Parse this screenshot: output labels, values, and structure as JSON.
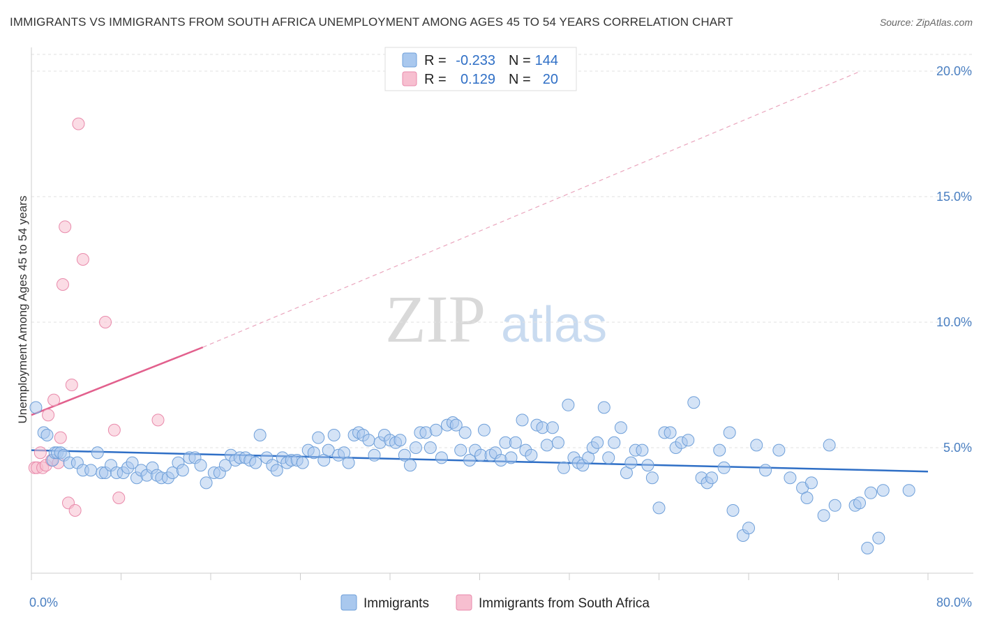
{
  "header": {
    "title": "IMMIGRANTS VS IMMIGRANTS FROM SOUTH AFRICA UNEMPLOYMENT AMONG AGES 45 TO 54 YEARS CORRELATION CHART",
    "source": "Source: ZipAtlas.com"
  },
  "watermark": {
    "zip": "ZIP",
    "atlas": "atlas"
  },
  "legend": {
    "rows": [
      {
        "r_label": "R =",
        "r_value": "-0.233",
        "n_label": "N =",
        "n_value": "144"
      },
      {
        "r_label": "R =",
        "r_value": "0.129",
        "n_label": "N =",
        "n_value": "20"
      }
    ]
  },
  "chart_data": {
    "type": "scatter",
    "ylabel": "Unemployment Among Ages 45 to 54 years",
    "xlabel": "",
    "xlim": [
      0,
      80
    ],
    "ylim": [
      0,
      20.5
    ],
    "x_tick_labels": [
      {
        "value": 0,
        "label": "0.0%"
      },
      {
        "value": 80,
        "label": "80.0%"
      }
    ],
    "y_tick_labels": [
      {
        "value": 5,
        "label": "5.0%"
      },
      {
        "value": 10,
        "label": "10.0%"
      },
      {
        "value": 15,
        "label": "15.0%"
      },
      {
        "value": 20,
        "label": "20.0%"
      }
    ],
    "grid": "horizontal dashed",
    "legend_position": "top-center",
    "colors": {
      "immigrants_fill": "#a9c8ee",
      "immigrants_stroke": "#6e9fd9",
      "immigrants_line": "#2f6fc6",
      "south_africa_fill": "#f7bfd0",
      "south_africa_stroke": "#e98aab",
      "south_africa_line": "#e2608d"
    },
    "series": [
      {
        "name": "Immigrants",
        "trend": {
          "x": [
            0,
            80
          ],
          "y": [
            4.9,
            4.05
          ],
          "style": "solid"
        },
        "points": [
          [
            0.4,
            6.6
          ],
          [
            1.1,
            5.6
          ],
          [
            1.4,
            5.5
          ],
          [
            1.9,
            4.5
          ],
          [
            2.1,
            4.8
          ],
          [
            2.3,
            4.8
          ],
          [
            2.6,
            4.8
          ],
          [
            2.9,
            4.7
          ],
          [
            3.4,
            4.4
          ],
          [
            4.1,
            4.4
          ],
          [
            4.6,
            4.1
          ],
          [
            5.3,
            4.1
          ],
          [
            5.9,
            4.8
          ],
          [
            6.3,
            4.0
          ],
          [
            6.6,
            4.0
          ],
          [
            7.1,
            4.3
          ],
          [
            7.6,
            4.0
          ],
          [
            8.2,
            4.0
          ],
          [
            8.6,
            4.2
          ],
          [
            9.0,
            4.4
          ],
          [
            9.4,
            3.8
          ],
          [
            9.8,
            4.1
          ],
          [
            10.3,
            3.9
          ],
          [
            10.8,
            4.2
          ],
          [
            11.2,
            3.9
          ],
          [
            11.6,
            3.8
          ],
          [
            12.2,
            3.8
          ],
          [
            12.6,
            4.0
          ],
          [
            13.1,
            4.4
          ],
          [
            13.5,
            4.1
          ],
          [
            14.1,
            4.6
          ],
          [
            14.6,
            4.6
          ],
          [
            15.1,
            4.3
          ],
          [
            15.6,
            3.6
          ],
          [
            16.3,
            4.0
          ],
          [
            16.8,
            4.0
          ],
          [
            17.3,
            4.3
          ],
          [
            17.8,
            4.7
          ],
          [
            18.2,
            4.5
          ],
          [
            18.6,
            4.6
          ],
          [
            19.1,
            4.6
          ],
          [
            19.5,
            4.5
          ],
          [
            20.0,
            4.4
          ],
          [
            20.4,
            5.5
          ],
          [
            21.0,
            4.6
          ],
          [
            21.5,
            4.3
          ],
          [
            21.9,
            4.1
          ],
          [
            22.4,
            4.6
          ],
          [
            22.8,
            4.4
          ],
          [
            23.2,
            4.5
          ],
          [
            23.7,
            4.5
          ],
          [
            24.2,
            4.4
          ],
          [
            24.7,
            4.9
          ],
          [
            25.2,
            4.8
          ],
          [
            25.6,
            5.4
          ],
          [
            26.1,
            4.5
          ],
          [
            26.5,
            4.9
          ],
          [
            27.0,
            5.5
          ],
          [
            27.4,
            4.7
          ],
          [
            27.9,
            4.8
          ],
          [
            28.3,
            4.4
          ],
          [
            28.8,
            5.5
          ],
          [
            29.2,
            5.6
          ],
          [
            29.6,
            5.5
          ],
          [
            30.1,
            5.3
          ],
          [
            30.6,
            4.7
          ],
          [
            31.1,
            5.2
          ],
          [
            31.5,
            5.5
          ],
          [
            32.0,
            5.3
          ],
          [
            32.5,
            5.2
          ],
          [
            32.9,
            5.3
          ],
          [
            33.3,
            4.7
          ],
          [
            33.8,
            4.3
          ],
          [
            34.3,
            5.0
          ],
          [
            34.7,
            5.6
          ],
          [
            35.2,
            5.6
          ],
          [
            35.6,
            5.0
          ],
          [
            36.1,
            5.7
          ],
          [
            36.6,
            4.6
          ],
          [
            37.1,
            5.9
          ],
          [
            37.6,
            6.0
          ],
          [
            37.9,
            5.9
          ],
          [
            38.3,
            4.9
          ],
          [
            38.7,
            5.6
          ],
          [
            39.1,
            4.5
          ],
          [
            39.6,
            4.9
          ],
          [
            40.1,
            4.7
          ],
          [
            40.4,
            5.7
          ],
          [
            41.0,
            4.7
          ],
          [
            41.4,
            4.8
          ],
          [
            41.9,
            4.5
          ],
          [
            42.3,
            5.2
          ],
          [
            42.8,
            4.6
          ],
          [
            43.2,
            5.2
          ],
          [
            43.8,
            6.1
          ],
          [
            44.1,
            4.9
          ],
          [
            44.6,
            4.7
          ],
          [
            45.1,
            5.9
          ],
          [
            45.6,
            5.8
          ],
          [
            46.0,
            5.1
          ],
          [
            46.5,
            5.8
          ],
          [
            47.0,
            5.2
          ],
          [
            47.5,
            4.2
          ],
          [
            47.9,
            6.7
          ],
          [
            48.4,
            4.6
          ],
          [
            48.8,
            4.4
          ],
          [
            49.2,
            4.3
          ],
          [
            49.7,
            4.6
          ],
          [
            50.1,
            5.0
          ],
          [
            50.5,
            5.2
          ],
          [
            51.1,
            6.6
          ],
          [
            51.5,
            4.6
          ],
          [
            52.0,
            5.2
          ],
          [
            52.6,
            5.8
          ],
          [
            53.1,
            4.0
          ],
          [
            53.5,
            4.4
          ],
          [
            53.9,
            4.9
          ],
          [
            54.5,
            4.9
          ],
          [
            55.0,
            4.3
          ],
          [
            55.4,
            3.8
          ],
          [
            56.0,
            2.6
          ],
          [
            56.5,
            5.6
          ],
          [
            57.0,
            5.6
          ],
          [
            57.5,
            5.0
          ],
          [
            58.0,
            5.2
          ],
          [
            58.6,
            5.3
          ],
          [
            59.1,
            6.8
          ],
          [
            59.8,
            3.8
          ],
          [
            60.3,
            3.6
          ],
          [
            60.7,
            3.8
          ],
          [
            61.4,
            4.9
          ],
          [
            61.8,
            4.2
          ],
          [
            62.3,
            5.6
          ],
          [
            62.6,
            2.5
          ],
          [
            63.5,
            1.5
          ],
          [
            64.0,
            1.8
          ],
          [
            64.7,
            5.1
          ],
          [
            65.5,
            4.1
          ],
          [
            66.7,
            4.9
          ],
          [
            67.7,
            3.8
          ],
          [
            68.8,
            3.4
          ],
          [
            69.2,
            3.0
          ],
          [
            69.6,
            3.6
          ],
          [
            70.7,
            2.3
          ],
          [
            71.2,
            5.1
          ],
          [
            71.7,
            2.7
          ],
          [
            73.5,
            2.7
          ],
          [
            73.9,
            2.8
          ],
          [
            74.6,
            1.0
          ],
          [
            74.9,
            3.2
          ],
          [
            75.6,
            1.4
          ],
          [
            76.0,
            3.3
          ],
          [
            78.3,
            3.3
          ]
        ]
      },
      {
        "name": "Immigrants from South Africa",
        "trend": {
          "x": [
            0,
            15.3
          ],
          "y": [
            6.3,
            9.0
          ],
          "style": "solid",
          "extended": {
            "x": [
              15.3,
              74
            ],
            "y": [
              9.0,
              20.0
            ],
            "style": "dashed"
          }
        },
        "points": [
          [
            0.3,
            4.2
          ],
          [
            0.5,
            4.2
          ],
          [
            0.8,
            4.8
          ],
          [
            1.0,
            4.2
          ],
          [
            1.3,
            4.3
          ],
          [
            1.5,
            6.3
          ],
          [
            1.8,
            4.5
          ],
          [
            2.0,
            6.9
          ],
          [
            2.4,
            4.4
          ],
          [
            2.6,
            5.4
          ],
          [
            2.8,
            11.5
          ],
          [
            3.0,
            13.8
          ],
          [
            3.3,
            2.8
          ],
          [
            3.6,
            7.5
          ],
          [
            3.9,
            2.5
          ],
          [
            4.2,
            17.9
          ],
          [
            4.6,
            12.5
          ],
          [
            6.6,
            10.0
          ],
          [
            7.4,
            5.7
          ],
          [
            7.8,
            3.0
          ],
          [
            11.3,
            6.1
          ]
        ]
      }
    ]
  },
  "bottom_legend": {
    "items": [
      {
        "label": "Immigrants"
      },
      {
        "label": "Immigrants from South Africa"
      }
    ]
  }
}
